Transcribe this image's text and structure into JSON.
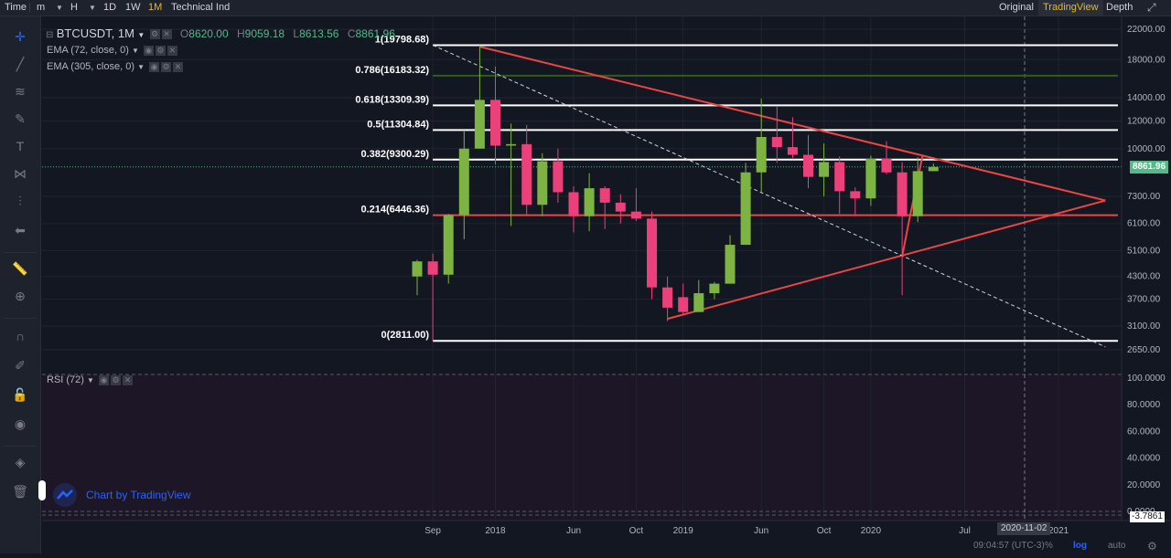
{
  "topbar": {
    "items": [
      {
        "label": "Time"
      },
      {
        "label": "m"
      },
      {
        "label": "H"
      },
      {
        "label": "1D"
      },
      {
        "label": "1W"
      },
      {
        "label": "1M",
        "active": true
      },
      {
        "label": "Technical Ind"
      }
    ],
    "tabs": [
      {
        "label": "Original"
      },
      {
        "label": "TradingView",
        "active": true
      },
      {
        "label": "Depth"
      }
    ]
  },
  "legend": {
    "symbol": "BTCUSDT, 1M",
    "open_label": "O",
    "open": "8620.00",
    "high_label": "H",
    "high": "9059.18",
    "low_label": "L",
    "low": "8613.56",
    "close_label": "C",
    "close": "8861.96",
    "ema1": "EMA (72, close, 0)",
    "ema2": "EMA (305, close, 0)",
    "rsi": "RSI (72)"
  },
  "fib_levels": [
    {
      "label": "1(19798.68)",
      "price": 19798.68,
      "color": "#ffffff"
    },
    {
      "label": "0.786(16183.32)",
      "price": 16183.32,
      "color": "#2e5d1f"
    },
    {
      "label": "0.618(13309.39)",
      "price": 13309.39,
      "color": "#ffffff"
    },
    {
      "label": "0.5(11304.84)",
      "price": 11304.84,
      "color": "#ffffff"
    },
    {
      "label": "0.382(9300.29)",
      "price": 9300.29,
      "color": "#ffffff"
    },
    {
      "label": "0.214(6446.36)",
      "price": 6446.36,
      "color": "#ef4444"
    },
    {
      "label": "0(2811.00)",
      "price": 2811.0,
      "color": "#ffffff"
    }
  ],
  "price_axis": [
    "22000.00",
    "18000.00",
    "14000.00",
    "12000.00",
    "10000.00",
    "7300.00",
    "6100.00",
    "5100.00",
    "4300.00",
    "3700.00",
    "3100.00",
    "2650.00"
  ],
  "price_axis_values": [
    22000,
    18000,
    14000,
    12000,
    10000,
    7300,
    6100,
    5100,
    4300,
    3700,
    3100,
    2650
  ],
  "current_price": "8861.96",
  "rsi_axis": [
    "100.0000",
    "80.0000",
    "60.0000",
    "40.0000",
    "20.0000",
    "0.0000"
  ],
  "rsi_current": "-3.7861",
  "time_axis": [
    {
      "label": "Sep",
      "index": 0
    },
    {
      "label": "2018",
      "index": 4
    },
    {
      "label": "Jun",
      "index": 9
    },
    {
      "label": "Oct",
      "index": 13
    },
    {
      "label": "2019",
      "index": 16
    },
    {
      "label": "Jun",
      "index": 21
    },
    {
      "label": "Oct",
      "index": 25
    },
    {
      "label": "2020",
      "index": 28
    },
    {
      "label": "Jul",
      "index": 34
    },
    {
      "label": "2021",
      "index": 40
    }
  ],
  "crosshair_date": "2020-11-02",
  "watermark": "Chart by TradingView",
  "status": {
    "time": "09:04:57 (UTC-3)",
    "pct": "%",
    "log": "log",
    "auto": "auto"
  },
  "chart_data": {
    "type": "candlestick",
    "symbol": "BTCUSDT",
    "interval": "1M",
    "scale": "log",
    "x_start": "2017-08",
    "candles": [
      {
        "m": "2017-08",
        "o": 4300,
        "h": 4800,
        "l": 3800,
        "c": 4750
      },
      {
        "m": "2017-09",
        "o": 4750,
        "h": 5000,
        "l": 2811,
        "c": 4350
      },
      {
        "m": "2017-10",
        "o": 4350,
        "h": 6500,
        "l": 4100,
        "c": 6450
      },
      {
        "m": "2017-11",
        "o": 6450,
        "h": 11300,
        "l": 5500,
        "c": 10000
      },
      {
        "m": "2017-12",
        "o": 10000,
        "h": 19798,
        "l": 10000,
        "c": 13800
      },
      {
        "m": "2018-01",
        "o": 13800,
        "h": 17200,
        "l": 9000,
        "c": 10200
      },
      {
        "m": "2018-02",
        "o": 10200,
        "h": 11800,
        "l": 6000,
        "c": 10300
      },
      {
        "m": "2018-03",
        "o": 10300,
        "h": 11700,
        "l": 6450,
        "c": 6900
      },
      {
        "m": "2018-04",
        "o": 6900,
        "h": 9700,
        "l": 6400,
        "c": 9200
      },
      {
        "m": "2018-05",
        "o": 9200,
        "h": 10000,
        "l": 7000,
        "c": 7500
      },
      {
        "m": "2018-06",
        "o": 7500,
        "h": 7800,
        "l": 5750,
        "c": 6400
      },
      {
        "m": "2018-07",
        "o": 6400,
        "h": 8500,
        "l": 5800,
        "c": 7700
      },
      {
        "m": "2018-08",
        "o": 7700,
        "h": 7800,
        "l": 5880,
        "c": 7000
      },
      {
        "m": "2018-09",
        "o": 7000,
        "h": 7400,
        "l": 6100,
        "c": 6600
      },
      {
        "m": "2018-10",
        "o": 6600,
        "h": 7700,
        "l": 6200,
        "c": 6300
      },
      {
        "m": "2018-11",
        "o": 6300,
        "h": 6600,
        "l": 3700,
        "c": 4000
      },
      {
        "m": "2018-12",
        "o": 4000,
        "h": 4300,
        "l": 3200,
        "c": 3500
      },
      {
        "m": "2019-01",
        "o": 3750,
        "h": 4100,
        "l": 3350,
        "c": 3400
      },
      {
        "m": "2019-02",
        "o": 3400,
        "h": 4200,
        "l": 3400,
        "c": 3850
      },
      {
        "m": "2019-03",
        "o": 3850,
        "h": 4150,
        "l": 3700,
        "c": 4100
      },
      {
        "m": "2019-04",
        "o": 4100,
        "h": 5650,
        "l": 4100,
        "c": 5300
      },
      {
        "m": "2019-05",
        "o": 5300,
        "h": 9100,
        "l": 5300,
        "c": 8550
      },
      {
        "m": "2019-06",
        "o": 8550,
        "h": 13900,
        "l": 7500,
        "c": 10800
      },
      {
        "m": "2019-07",
        "o": 10800,
        "h": 13200,
        "l": 9100,
        "c": 10100
      },
      {
        "m": "2019-08",
        "o": 10100,
        "h": 12300,
        "l": 9400,
        "c": 9600
      },
      {
        "m": "2019-09",
        "o": 9600,
        "h": 10950,
        "l": 7700,
        "c": 8300
      },
      {
        "m": "2019-10",
        "o": 8300,
        "h": 10350,
        "l": 7300,
        "c": 9150
      },
      {
        "m": "2019-11",
        "o": 9150,
        "h": 9500,
        "l": 6500,
        "c": 7550
      },
      {
        "m": "2019-12",
        "o": 7550,
        "h": 7750,
        "l": 6400,
        "c": 7200
      },
      {
        "m": "2020-01",
        "o": 7200,
        "h": 9550,
        "l": 6850,
        "c": 9350
      },
      {
        "m": "2020-02",
        "o": 9350,
        "h": 10500,
        "l": 8450,
        "c": 8550
      },
      {
        "m": "2020-03",
        "o": 8550,
        "h": 9150,
        "l": 3800,
        "c": 6400
      },
      {
        "m": "2020-04",
        "o": 6400,
        "h": 9450,
        "l": 6150,
        "c": 8620
      },
      {
        "m": "2020-05",
        "o": 8620,
        "h": 9059.18,
        "l": 8613.56,
        "c": 8861.96
      }
    ],
    "fib_retracement": {
      "high": 19798.68,
      "low": 2811.0
    },
    "triangle": [
      {
        "from": [
          "2017-12",
          19600
        ],
        "to": [
          "2021-04",
          7100
        ]
      },
      {
        "from": [
          "2018-12",
          3250
        ],
        "to": [
          "2021-04",
          7100
        ]
      }
    ],
    "dashed_trend": {
      "from": [
        "2017-09",
        19800
      ],
      "to": [
        "2021-04",
        2700
      ]
    },
    "rsi": {
      "period": 72,
      "ylim": [
        0,
        100
      ]
    }
  }
}
